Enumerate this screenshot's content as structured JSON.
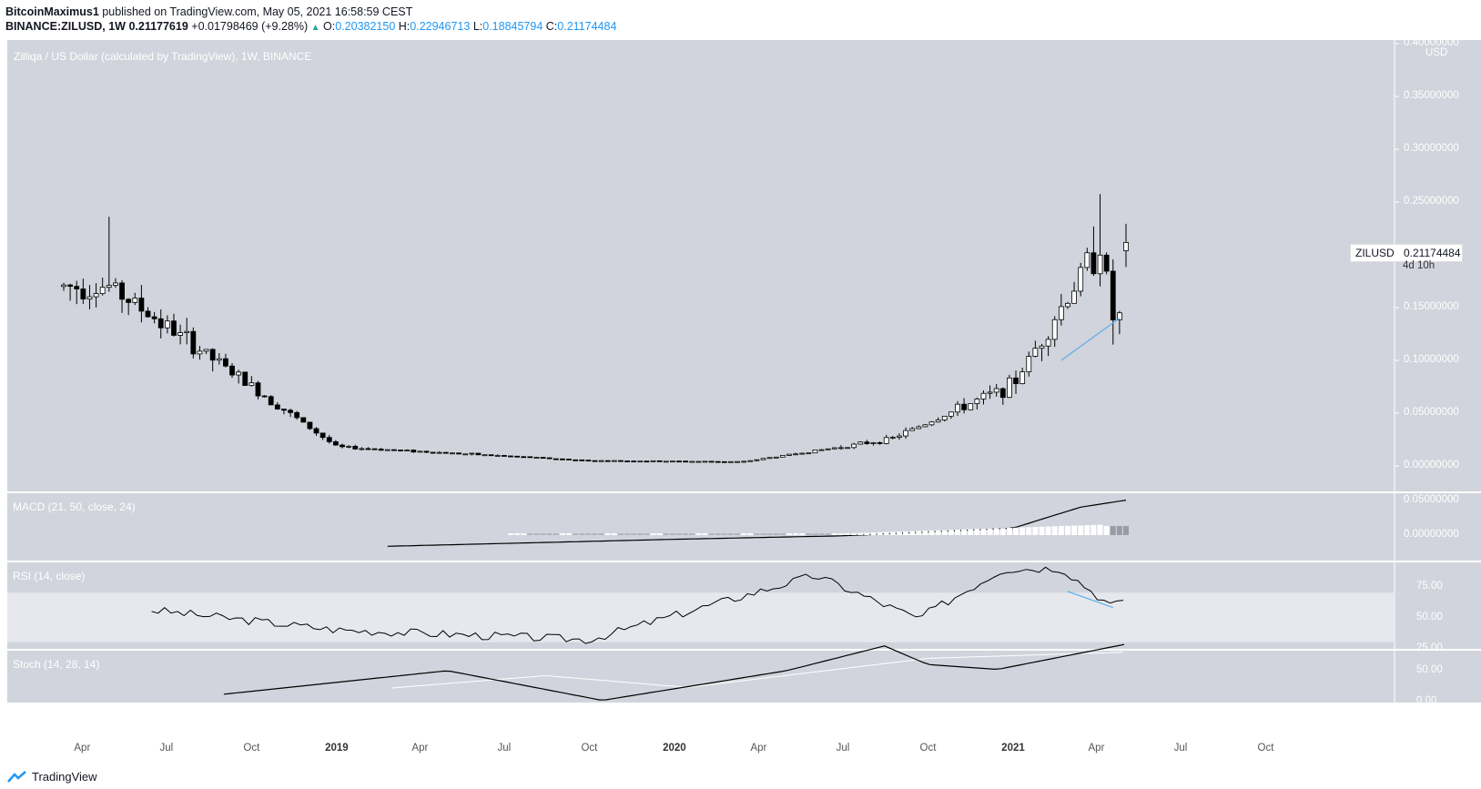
{
  "header": {
    "author": "BitcoinMaximus1",
    "published": "published on TradingView.com, May 05, 2021 16:58:59 CEST",
    "symbol": "BINANCE:ZILUSD, 1W",
    "last": "0.21177619",
    "change": "+0.01798469 (+9.28%)",
    "o_label": "O:",
    "o": "0.20382150",
    "h_label": "H:",
    "h": "0.22946713",
    "l_label": "L:",
    "l": "0.18845794",
    "c_label": "C:",
    "c": "0.21174484",
    "up_arrow": "▲"
  },
  "panes": {
    "main_title": "Zilliqa / US Dollar (calculated by TradingView), 1W, BINANCE",
    "macd_title": "MACD (21, 50, close, 24)",
    "rsi_title": "RSI (14, close)",
    "stoch_title": "Stoch (14, 28, 14)"
  },
  "price_axis": {
    "currency": "USD",
    "ticks": [
      "0.40000000",
      "0.35000000",
      "0.30000000",
      "0.25000000",
      "0.15000000",
      "0.10000000",
      "0.05000000",
      "0.00000000"
    ]
  },
  "macd_axis": {
    "ticks": [
      "0.05000000",
      "0.00000000"
    ]
  },
  "rsi_axis": {
    "ticks": [
      "75.00",
      "50.00",
      "25.00"
    ]
  },
  "stoch_axis": {
    "ticks": [
      "50.00",
      "0.00"
    ]
  },
  "last_price_tag": {
    "symbol": "ZILUSD",
    "price": "0.21174484",
    "countdown": "4d 10h"
  },
  "time_axis": [
    "Apr",
    "Jul",
    "Oct",
    "2019",
    "Apr",
    "Jul",
    "Oct",
    "2020",
    "Apr",
    "Jul",
    "Oct",
    "2021",
    "Apr",
    "Jul",
    "Oct"
  ],
  "footer": {
    "brand": "TradingView"
  },
  "colors": {
    "pane_bg": "#d1d4dc",
    "candle_up": "#ffffff",
    "candle_down": "#000000",
    "trendline": "#5aaee8",
    "rsi_band": "#e6e8ee"
  },
  "chart_data": [
    {
      "type": "candlestick",
      "title": "Zilliqa / US Dollar (calculated by TradingView), 1W, BINANCE",
      "ylabel": "USD",
      "ylim": [
        0,
        0.4
      ],
      "x_start": "2018-03-12",
      "x_end": "2021-05-03",
      "interval": "1W",
      "last_candle": {
        "open": 0.2038215,
        "high": 0.22946713,
        "low": 0.18845794,
        "close": 0.21174484
      },
      "key_points": [
        {
          "date": "2018-05-01",
          "high": 0.236,
          "close": 0.17
        },
        {
          "date": "2019-01-01",
          "close": 0.018
        },
        {
          "date": "2019-10-01",
          "close": 0.005
        },
        {
          "date": "2020-03-15",
          "low": 0.003,
          "close": 0.004
        },
        {
          "date": "2020-08-20",
          "close": 0.025
        },
        {
          "date": "2021-01-01",
          "close": 0.077
        },
        {
          "date": "2021-04-05",
          "high": 0.2575,
          "close": 0.21
        },
        {
          "date": "2021-04-19",
          "low": 0.115,
          "close": 0.14
        }
      ],
      "trendline": [
        {
          "date": "2021-02-22",
          "price": 0.1
        },
        {
          "date": "2021-04-26",
          "price": 0.14
        }
      ]
    },
    {
      "type": "line",
      "title": "MACD (21, 50, close, 24)",
      "ylim": [
        -0.02,
        0.06
      ],
      "macd_points": [
        {
          "date": "2019-02-25",
          "value": -0.016
        },
        {
          "date": "2020-01-01",
          "value": -0.006
        },
        {
          "date": "2020-07-01",
          "value": -0.001
        },
        {
          "date": "2021-01-01",
          "value": 0.01
        },
        {
          "date": "2021-03-15",
          "value": 0.04
        },
        {
          "date": "2021-05-03",
          "value": 0.05
        }
      ],
      "histogram_peak": 0.022
    },
    {
      "type": "line",
      "title": "RSI (14, close)",
      "ylim": [
        20,
        100
      ],
      "band": [
        30,
        70
      ],
      "points": [
        {
          "date": "2018-06-15",
          "value": 56
        },
        {
          "date": "2019-01-01",
          "value": 40
        },
        {
          "date": "2019-10-01",
          "value": 32
        },
        {
          "date": "2020-06-01",
          "value": 84
        },
        {
          "date": "2020-09-20",
          "value": 49
        },
        {
          "date": "2020-12-21",
          "value": 89
        },
        {
          "date": "2021-02-22",
          "value": 90
        },
        {
          "date": "2021-04-19",
          "value": 58
        },
        {
          "date": "2021-05-03",
          "value": 67
        }
      ],
      "trendline": [
        {
          "date": "2021-03-01",
          "value": 71
        },
        {
          "date": "2021-04-19",
          "value": 58
        }
      ]
    },
    {
      "type": "line",
      "title": "Stoch (14, 28, 14)",
      "ylim": [
        0,
        100
      ],
      "k_points": [
        {
          "date": "2018-09-01",
          "value": 12
        },
        {
          "date": "2019-05-01",
          "value": 50
        },
        {
          "date": "2019-10-15",
          "value": 2
        },
        {
          "date": "2020-05-01",
          "value": 50
        },
        {
          "date": "2020-08-15",
          "value": 90
        },
        {
          "date": "2020-10-01",
          "value": 60
        },
        {
          "date": "2020-12-15",
          "value": 52
        },
        {
          "date": "2021-05-03",
          "value": 93
        }
      ],
      "d_points": [
        {
          "date": "2019-03-01",
          "value": 22
        },
        {
          "date": "2019-08-15",
          "value": 42
        },
        {
          "date": "2020-01-15",
          "value": 23
        },
        {
          "date": "2020-10-01",
          "value": 70
        },
        {
          "date": "2021-05-03",
          "value": 80
        }
      ]
    }
  ]
}
